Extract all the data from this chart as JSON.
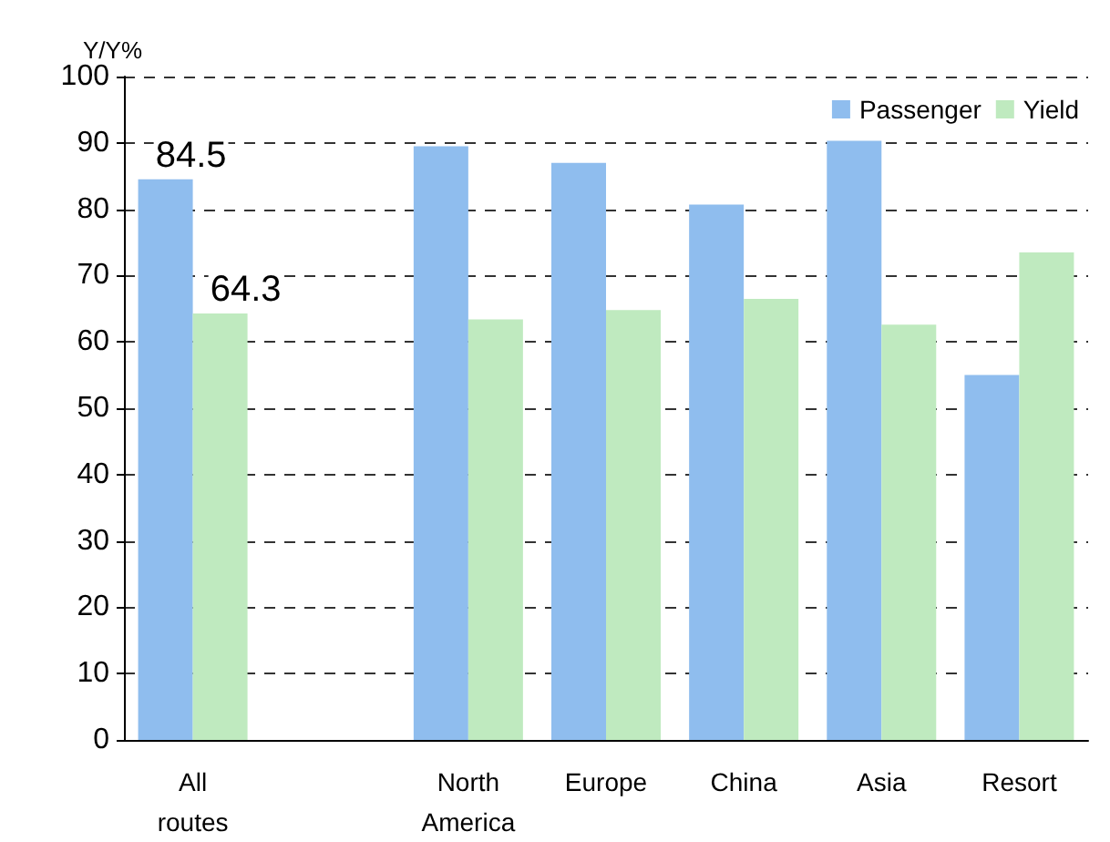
{
  "chart_data": {
    "type": "bar",
    "ylabel": "Y/Y%",
    "categories": [
      "All\nroutes",
      null,
      "North\nAmerica",
      "Europe",
      "China",
      "Asia",
      "Resort"
    ],
    "series": [
      {
        "name": "Passenger",
        "color": "#8fbdee",
        "values": [
          84.5,
          null,
          89.5,
          87,
          80.7,
          90.3,
          55
        ],
        "value_labels": [
          "84.5",
          null,
          null,
          null,
          null,
          null,
          null
        ]
      },
      {
        "name": "Yield",
        "color": "#bfeabf",
        "values": [
          64.3,
          null,
          63.4,
          64.8,
          66.5,
          62.6,
          73.5
        ],
        "value_labels": [
          "64.3",
          null,
          null,
          null,
          null,
          null,
          null
        ]
      }
    ],
    "ylim": [
      0,
      100
    ],
    "yticks": [
      0,
      10,
      20,
      30,
      40,
      50,
      60,
      70,
      80,
      90,
      100
    ],
    "grid": "y",
    "legend": "top right"
  }
}
